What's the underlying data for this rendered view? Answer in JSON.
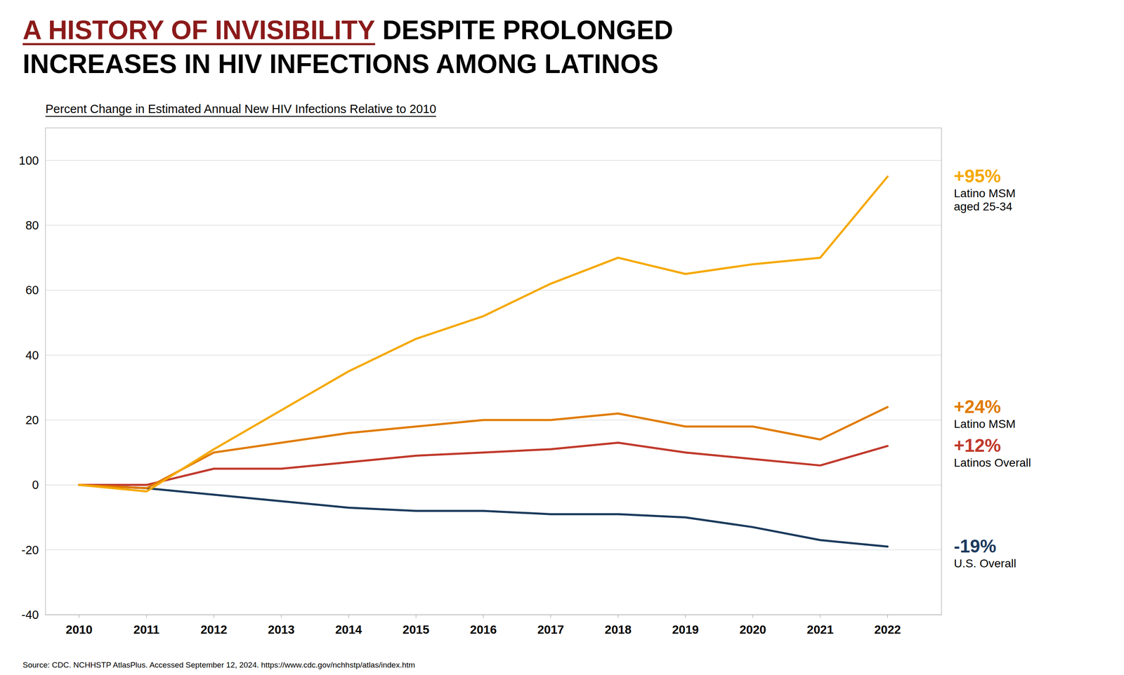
{
  "chart_data": {
    "type": "line",
    "title": [
      [
        {
          "text": "A HISTORY OF INVISIBILITY",
          "color": "#8B1A1A"
        },
        {
          "text": " DESPITE PROLONGED",
          "color": "#000000"
        }
      ],
      [
        {
          "text": "INCREASES IN HIV INFECTIONS AMONG LATINOS",
          "color": "#000000"
        }
      ]
    ],
    "subtitle": "Percent Change in Estimated Annual New HIV Infections Relative to 2010",
    "source": "Source: CDC. NCHHSTP AtlasPlus. Accessed September 12, 2024. https://www.cdc.gov/nchhstp/atlas/index.htm",
    "x": [
      2010,
      2011,
      2012,
      2013,
      2014,
      2015,
      2016,
      2017,
      2018,
      2019,
      2020,
      2021,
      2022
    ],
    "xlim": [
      2009.5,
      2022.8
    ],
    "xticks": [
      2010,
      2011,
      2012,
      2013,
      2014,
      2015,
      2016,
      2017,
      2018,
      2019,
      2020,
      2021,
      2022
    ],
    "ylim": [
      -40,
      110
    ],
    "yticks": [
      -40,
      -20,
      0,
      20,
      40,
      60,
      80,
      100
    ],
    "grid": true,
    "series": [
      {
        "name": "U.S. Overall",
        "color": "#1B3A5C",
        "end_label": "-19%",
        "values": [
          0,
          -1,
          -3,
          -5,
          -7,
          -8,
          -8,
          -9,
          -9,
          -10,
          -13,
          -17,
          -19
        ]
      },
      {
        "name": "Latinos Overall",
        "color": "#C0392B",
        "end_label": "+12%",
        "values": [
          0,
          0,
          5,
          5,
          7,
          9,
          10,
          11,
          13,
          10,
          8,
          6,
          12
        ]
      },
      {
        "name": "Latino MSM",
        "color": "#E07B00",
        "end_label": "+24%",
        "values": [
          0,
          -1,
          10,
          13,
          16,
          18,
          20,
          20,
          22,
          18,
          18,
          14,
          24
        ]
      },
      {
        "name": "Latino MSM\naged 25-34",
        "color": "#F5A800",
        "end_label": "+95%",
        "values": [
          0,
          -2,
          11,
          23,
          35,
          45,
          52,
          62,
          70,
          65,
          68,
          70,
          95
        ]
      }
    ]
  }
}
